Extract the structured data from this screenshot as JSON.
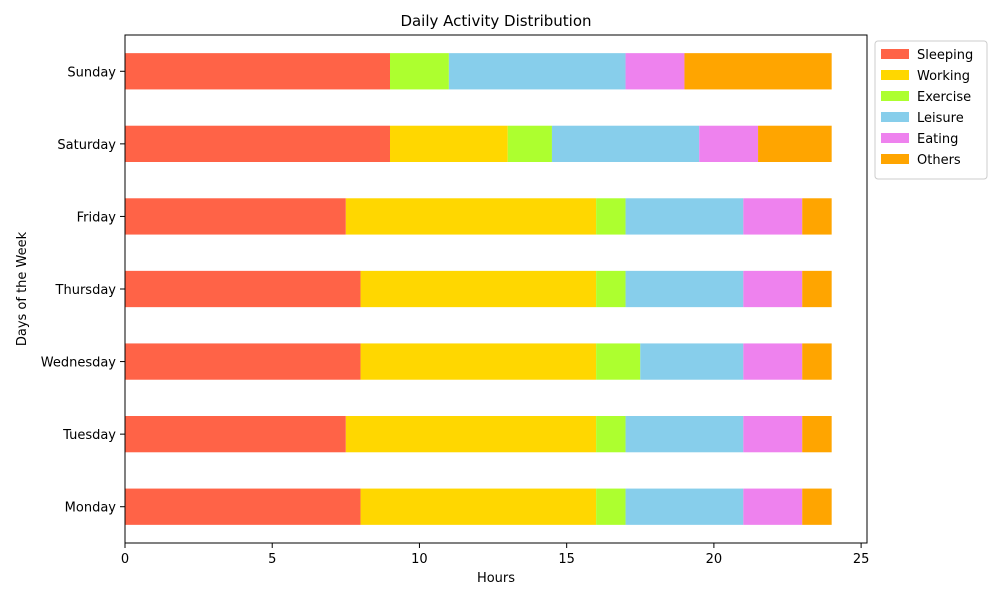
{
  "chart_data": {
    "type": "bar",
    "orientation": "horizontal",
    "stacked": true,
    "title": "Daily Activity Distribution",
    "xlabel": "Hours",
    "ylabel": "Days of the Week",
    "xlim": [
      0,
      25.2
    ],
    "xticks": [
      0,
      5,
      10,
      15,
      20,
      25
    ],
    "grid": false,
    "legend_position": "outside top-right",
    "categories": [
      "Monday",
      "Tuesday",
      "Wednesday",
      "Thursday",
      "Friday",
      "Saturday",
      "Sunday"
    ],
    "series": [
      {
        "name": "Sleeping",
        "color": "#FF6347",
        "values": [
          8,
          7.5,
          8,
          8,
          7.5,
          9,
          9
        ]
      },
      {
        "name": "Working",
        "color": "#FFD700",
        "values": [
          8,
          8.5,
          8,
          8,
          8.5,
          4,
          0
        ]
      },
      {
        "name": "Exercise",
        "color": "#ADFF2F",
        "values": [
          1,
          1,
          1.5,
          1,
          1,
          1.5,
          2
        ]
      },
      {
        "name": "Leisure",
        "color": "#87CEEB",
        "values": [
          4,
          4,
          3.5,
          4,
          4,
          5,
          6
        ]
      },
      {
        "name": "Eating",
        "color": "#EE82EE",
        "values": [
          2,
          2,
          2,
          2,
          2,
          2,
          2
        ]
      },
      {
        "name": "Others",
        "color": "#FFA500",
        "values": [
          1,
          1,
          1,
          1,
          1,
          2.5,
          5
        ]
      }
    ]
  }
}
